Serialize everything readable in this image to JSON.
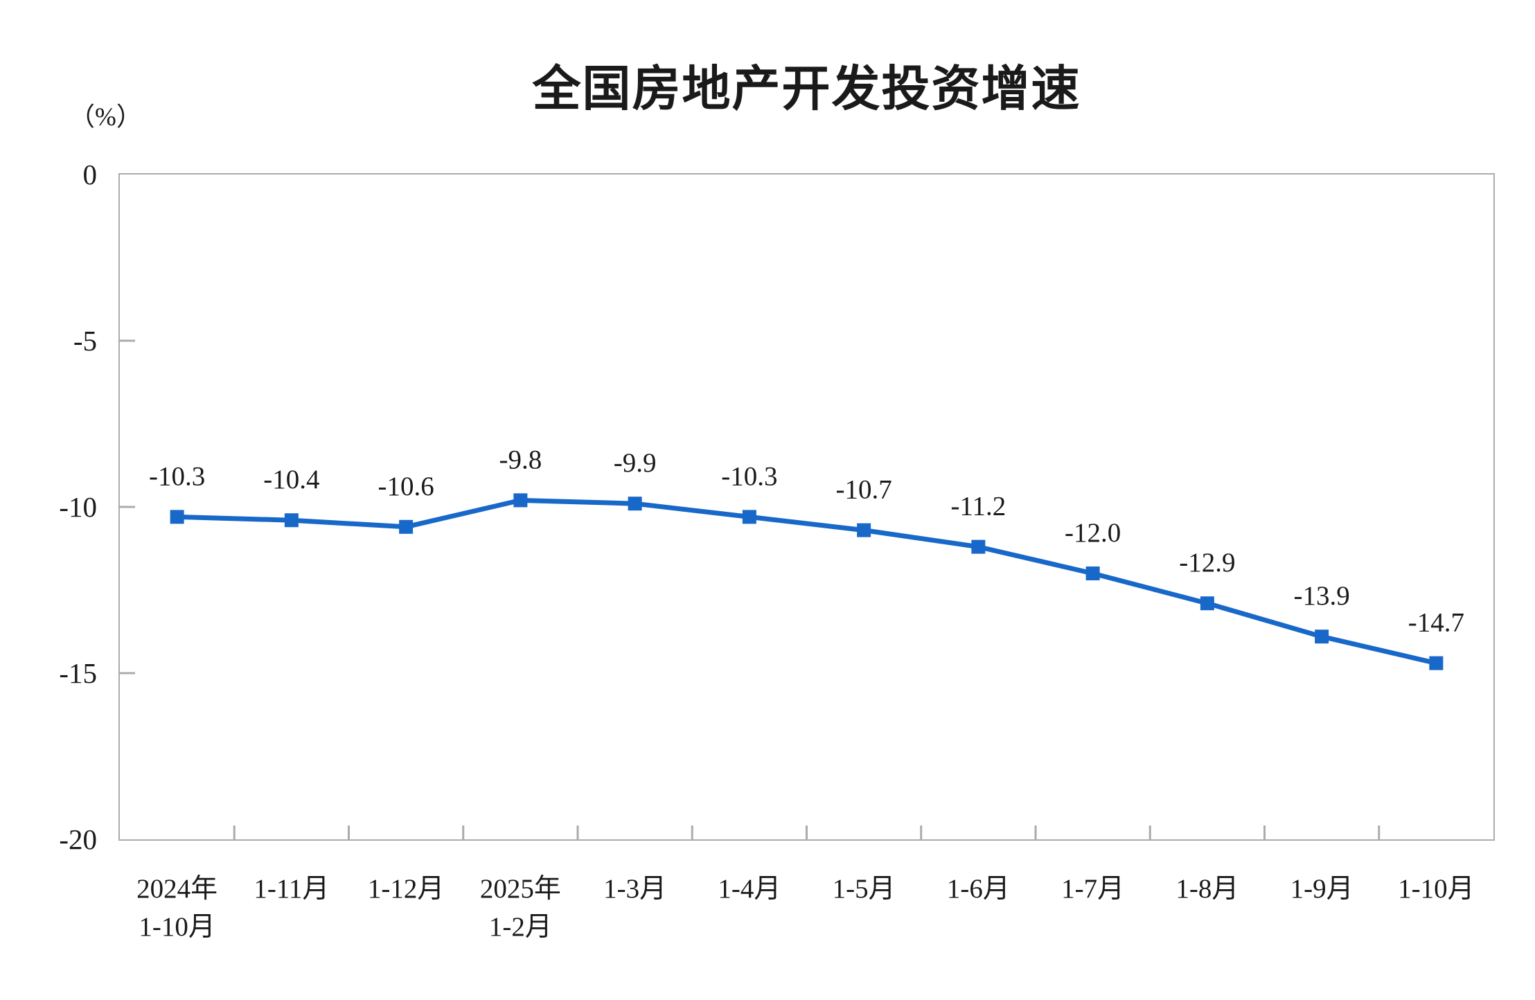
{
  "chart_data": {
    "type": "line",
    "title": "全国房地产开发投资增速",
    "unit_label": "（%）",
    "categories": [
      "2024年\n1-10月",
      "1-11月",
      "1-12月",
      "2025年\n1-2月",
      "1-3月",
      "1-4月",
      "1-5月",
      "1-6月",
      "1-7月",
      "1-8月",
      "1-9月",
      "1-10月"
    ],
    "values": [
      -10.3,
      -10.4,
      -10.6,
      -9.8,
      -9.9,
      -10.3,
      -10.7,
      -11.2,
      -12.0,
      -12.9,
      -13.9,
      -14.7
    ],
    "xlabel": "",
    "ylabel": "",
    "ylim": [
      -20,
      0
    ],
    "yticks": [
      0,
      -5,
      -10,
      -15,
      -20
    ],
    "grid": false,
    "legend_position": "none",
    "marker": "square",
    "colors": {
      "line": "#1868C9",
      "marker": "#1868C9",
      "axis": "#ABABAB",
      "label_text": "#1a1a1a"
    }
  }
}
